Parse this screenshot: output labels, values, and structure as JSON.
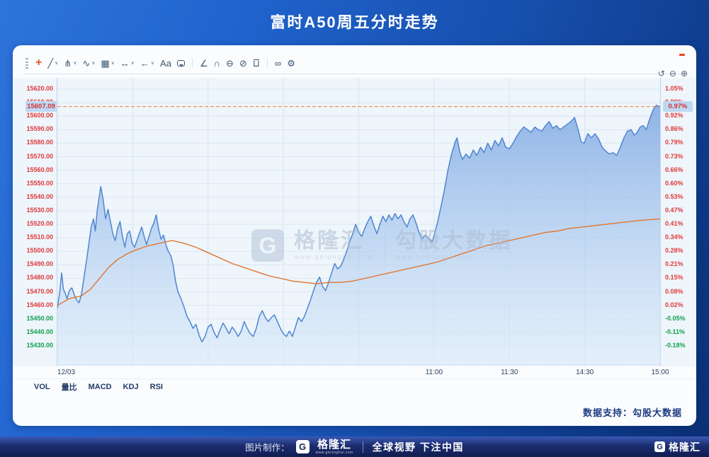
{
  "page": {
    "title": "富时A50周五分时走势"
  },
  "toolbar": {
    "tools": [
      {
        "name": "move-tool",
        "glyph": "+",
        "accent": true,
        "dropdown": false
      },
      {
        "name": "trendline-tool",
        "glyph": "╱",
        "dropdown": true
      },
      {
        "name": "pitchfork-tool",
        "glyph": "⋔",
        "dropdown": true
      },
      {
        "name": "wave-tool",
        "glyph": "∿",
        "dropdown": true
      },
      {
        "name": "pattern-tool",
        "glyph": "▦",
        "dropdown": true
      },
      {
        "name": "measure-tool",
        "glyph": "↔",
        "dropdown": true
      },
      {
        "name": "arrow-tool",
        "glyph": "←",
        "dropdown": true
      },
      {
        "name": "text-tool",
        "glyph": "Aa",
        "dropdown": false
      },
      {
        "name": "comment-tool",
        "shape": "bubble",
        "dropdown": false
      },
      {
        "divider": true
      },
      {
        "name": "angle-tool",
        "glyph": "∠",
        "dropdown": false
      },
      {
        "name": "magnet-tool",
        "glyph": "∩",
        "dropdown": false
      },
      {
        "name": "hide-drawings-tool",
        "glyph": "⊖",
        "dropdown": false
      },
      {
        "name": "lock-drawings-tool",
        "glyph": "⊘",
        "dropdown": false
      },
      {
        "name": "delete-tool",
        "glyph": "⊔",
        "shape": "trash",
        "dropdown": false
      },
      {
        "divider": true
      },
      {
        "name": "sync-tool",
        "glyph": "∞",
        "dropdown": false
      },
      {
        "name": "settings-tool",
        "glyph": "⚙",
        "dropdown": false
      }
    ]
  },
  "corner_tools": [
    {
      "name": "undo-icon",
      "glyph": "↺"
    },
    {
      "name": "zoom-out-icon",
      "glyph": "⊖"
    },
    {
      "name": "zoom-in-icon",
      "glyph": "⊕"
    }
  ],
  "indicators": [
    "VOL",
    "量比",
    "MACD",
    "KDJ",
    "RSI"
  ],
  "data_support": "数据支持：勾股大数据",
  "watermark": {
    "brand_initial": "G",
    "brand": "格隆汇",
    "brand_url": "www.gelonghui.com",
    "partner": "勾股大数据",
    "partner_url": "www.gogudata.com"
  },
  "footer": {
    "made_by": "图片制作：",
    "brand_initial": "G",
    "brand": "格隆汇",
    "brand_url": "www.gelonghui.com",
    "slogan": "全球视野 下注中国",
    "right_brand_initial": "G",
    "right_brand": "格隆汇"
  },
  "chart_data": {
    "type": "area",
    "title": "富时A50周五分时走势",
    "prev_close": 15457.16,
    "current": {
      "price_label": "15607.09",
      "pct_label": "0.97%",
      "value": 15607.09
    },
    "y_axis": {
      "min": 15430,
      "max": 15620,
      "step": 10
    },
    "y_right_labels": [
      "1.05%",
      "0.99%",
      "0.92%",
      "0.86%",
      "0.79%",
      "0.73%",
      "0.66%",
      "0.60%",
      "0.53%",
      "0.47%",
      "0.41%",
      "0.34%",
      "0.28%",
      "0.21%",
      "0.15%",
      "0.08%",
      "0.02%",
      "-0.05%",
      "-0.11%",
      "-0.18%"
    ],
    "x_gridlines": [
      0,
      0.125,
      0.25,
      0.375,
      0.5,
      0.625,
      0.75,
      0.875,
      1
    ],
    "x_tick_labels": [
      {
        "f": 0,
        "label": "12/03",
        "anchor": "start"
      },
      {
        "f": 0.625,
        "label": "11:00",
        "anchor": "middle"
      },
      {
        "f": 0.75,
        "label": "11:30",
        "anchor": "middle"
      },
      {
        "f": 0.875,
        "label": "14:30",
        "anchor": "middle"
      },
      {
        "f": 1,
        "label": "15:00",
        "anchor": "middle"
      }
    ],
    "colors": {
      "up": "#e03b3b",
      "down": "#12a04f",
      "price_line": "#4f86d2",
      "ma_line": "#e0762f",
      "dashed": "#ef7d30",
      "grid": "#dbe7f3",
      "vgrid": "#d9e5f2",
      "badge_bg": "#bcd9f4"
    },
    "series": [
      {
        "name": "price",
        "fill": true,
        "x": [
          0,
          0.004,
          0.007,
          0.01,
          0.013,
          0.016,
          0.02,
          0.024,
          0.028,
          0.032,
          0.036,
          0.04,
          0.044,
          0.048,
          0.052,
          0.056,
          0.06,
          0.063,
          0.066,
          0.069,
          0.072,
          0.076,
          0.08,
          0.084,
          0.088,
          0.092,
          0.096,
          0.1,
          0.104,
          0.108,
          0.112,
          0.116,
          0.12,
          0.124,
          0.128,
          0.132,
          0.136,
          0.14,
          0.144,
          0.148,
          0.152,
          0.156,
          0.16,
          0.164,
          0.168,
          0.172,
          0.176,
          0.18,
          0.184,
          0.188,
          0.192,
          0.196,
          0.2,
          0.205,
          0.21,
          0.215,
          0.22,
          0.225,
          0.23,
          0.235,
          0.24,
          0.245,
          0.25,
          0.255,
          0.26,
          0.265,
          0.27,
          0.275,
          0.28,
          0.285,
          0.29,
          0.295,
          0.3,
          0.305,
          0.31,
          0.315,
          0.32,
          0.325,
          0.33,
          0.335,
          0.34,
          0.345,
          0.35,
          0.355,
          0.36,
          0.365,
          0.37,
          0.375,
          0.38,
          0.385,
          0.39,
          0.395,
          0.4,
          0.405,
          0.41,
          0.415,
          0.42,
          0.425,
          0.43,
          0.435,
          0.44,
          0.445,
          0.45,
          0.455,
          0.46,
          0.465,
          0.47,
          0.475,
          0.48,
          0.485,
          0.49,
          0.495,
          0.5,
          0.505,
          0.51,
          0.515,
          0.52,
          0.525,
          0.53,
          0.535,
          0.54,
          0.545,
          0.55,
          0.555,
          0.56,
          0.565,
          0.57,
          0.575,
          0.58,
          0.585,
          0.59,
          0.595,
          0.6,
          0.605,
          0.61,
          0.615,
          0.622,
          0.63,
          0.636,
          0.642,
          0.648,
          0.654,
          0.66,
          0.663,
          0.668,
          0.672,
          0.678,
          0.684,
          0.69,
          0.696,
          0.702,
          0.708,
          0.714,
          0.72,
          0.726,
          0.732,
          0.738,
          0.744,
          0.75,
          0.756,
          0.762,
          0.768,
          0.774,
          0.78,
          0.786,
          0.792,
          0.798,
          0.804,
          0.81,
          0.816,
          0.822,
          0.828,
          0.834,
          0.84,
          0.846,
          0.852,
          0.858,
          0.864,
          0.869,
          0.874,
          0.88,
          0.886,
          0.892,
          0.898,
          0.904,
          0.91,
          0.916,
          0.922,
          0.928,
          0.934,
          0.94,
          0.946,
          0.952,
          0.957,
          0.962,
          0.967,
          0.972,
          0.977,
          0.982,
          0.986,
          0.99,
          0.994,
          1.0
        ],
        "values": [
          15458,
          15470,
          15484,
          15472,
          15469,
          15465,
          15471,
          15473,
          15468,
          15464,
          15462,
          15468,
          15480,
          15492,
          15505,
          15518,
          15524,
          15515,
          15530,
          15539,
          15548,
          15538,
          15524,
          15531,
          15522,
          15513,
          15508,
          15517,
          15522,
          15511,
          15503,
          15513,
          15515,
          15506,
          15503,
          15508,
          15513,
          15518,
          15511,
          15505,
          15511,
          15517,
          15521,
          15527,
          15516,
          15509,
          15512,
          15505,
          15500,
          15497,
          15490,
          15478,
          15470,
          15465,
          15459,
          15452,
          15448,
          15443,
          15446,
          15438,
          15433,
          15437,
          15444,
          15446,
          15440,
          15436,
          15442,
          15447,
          15443,
          15439,
          15444,
          15441,
          15437,
          15441,
          15448,
          15443,
          15439,
          15437,
          15443,
          15452,
          15456,
          15451,
          15448,
          15451,
          15453,
          15448,
          15443,
          15439,
          15437,
          15441,
          15437,
          15444,
          15451,
          15448,
          15452,
          15458,
          15464,
          15471,
          15477,
          15481,
          15474,
          15471,
          15477,
          15484,
          15491,
          15487,
          15489,
          15494,
          15500,
          15507,
          15513,
          15520,
          15514,
          15511,
          15517,
          15522,
          15526,
          15519,
          15513,
          15520,
          15526,
          15522,
          15527,
          15523,
          15528,
          15524,
          15527,
          15522,
          15518,
          15524,
          15527,
          15521,
          15514,
          15509,
          15512,
          15510,
          15507,
          15520,
          15532,
          15545,
          15560,
          15572,
          15581,
          15584,
          15573,
          15568,
          15572,
          15569,
          15575,
          15571,
          15577,
          15573,
          15580,
          15575,
          15582,
          15578,
          15584,
          15577,
          15576,
          15580,
          15585,
          15589,
          15592,
          15590,
          15588,
          15592,
          15590,
          15589,
          15593,
          15596,
          15591,
          15593,
          15590,
          15592,
          15594,
          15596,
          15599,
          15590,
          15581,
          15580,
          15587,
          15584,
          15587,
          15583,
          15577,
          15574,
          15572,
          15573,
          15571,
          15577,
          15584,
          15589,
          15590,
          15586,
          15588,
          15592,
          15593,
          15590,
          15597,
          15602,
          15606,
          15608,
          15607.09
        ]
      },
      {
        "name": "ma",
        "fill": false,
        "x": [
          0,
          0.02,
          0.04,
          0.055,
          0.07,
          0.085,
          0.1,
          0.115,
          0.13,
          0.15,
          0.17,
          0.19,
          0.21,
          0.23,
          0.25,
          0.27,
          0.29,
          0.31,
          0.33,
          0.35,
          0.37,
          0.39,
          0.41,
          0.43,
          0.45,
          0.47,
          0.49,
          0.51,
          0.53,
          0.55,
          0.57,
          0.59,
          0.61,
          0.63,
          0.65,
          0.67,
          0.69,
          0.71,
          0.73,
          0.75,
          0.77,
          0.79,
          0.81,
          0.83,
          0.85,
          0.87,
          0.89,
          0.91,
          0.93,
          0.95,
          0.97,
          1.0
        ],
        "values": [
          15460,
          15465,
          15467,
          15472,
          15480,
          15488,
          15494,
          15498,
          15501,
          15504,
          15506,
          15508,
          15506,
          15503,
          15499,
          15495,
          15491,
          15488,
          15485,
          15482,
          15480,
          15478,
          15477,
          15476,
          15477,
          15477,
          15478,
          15480,
          15482,
          15484,
          15486,
          15488,
          15490,
          15492,
          15495,
          15498,
          15501,
          15504,
          15506,
          15508,
          15510,
          15512,
          15514,
          15515,
          15517,
          15518,
          15519,
          15520,
          15521,
          15522,
          15523,
          15524
        ]
      }
    ]
  }
}
